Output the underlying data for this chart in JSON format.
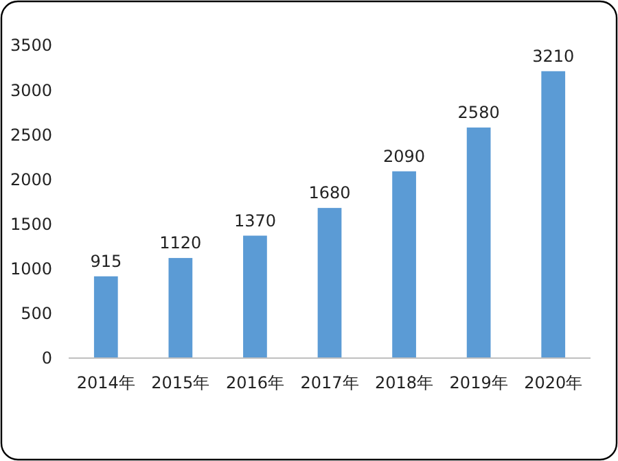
{
  "chart_data": {
    "type": "bar",
    "categories": [
      "2014年",
      "2015年",
      "2016年",
      "2017年",
      "2018年",
      "2019年",
      "2020年"
    ],
    "values": [
      915,
      1120,
      1370,
      1680,
      2090,
      2580,
      3210
    ],
    "color": "#5b9bd5",
    "ylim": [
      0,
      3500
    ],
    "yticks": [
      0,
      500,
      1000,
      1500,
      2000,
      2500,
      3000,
      3500
    ],
    "grid": false,
    "data_labels": true
  }
}
